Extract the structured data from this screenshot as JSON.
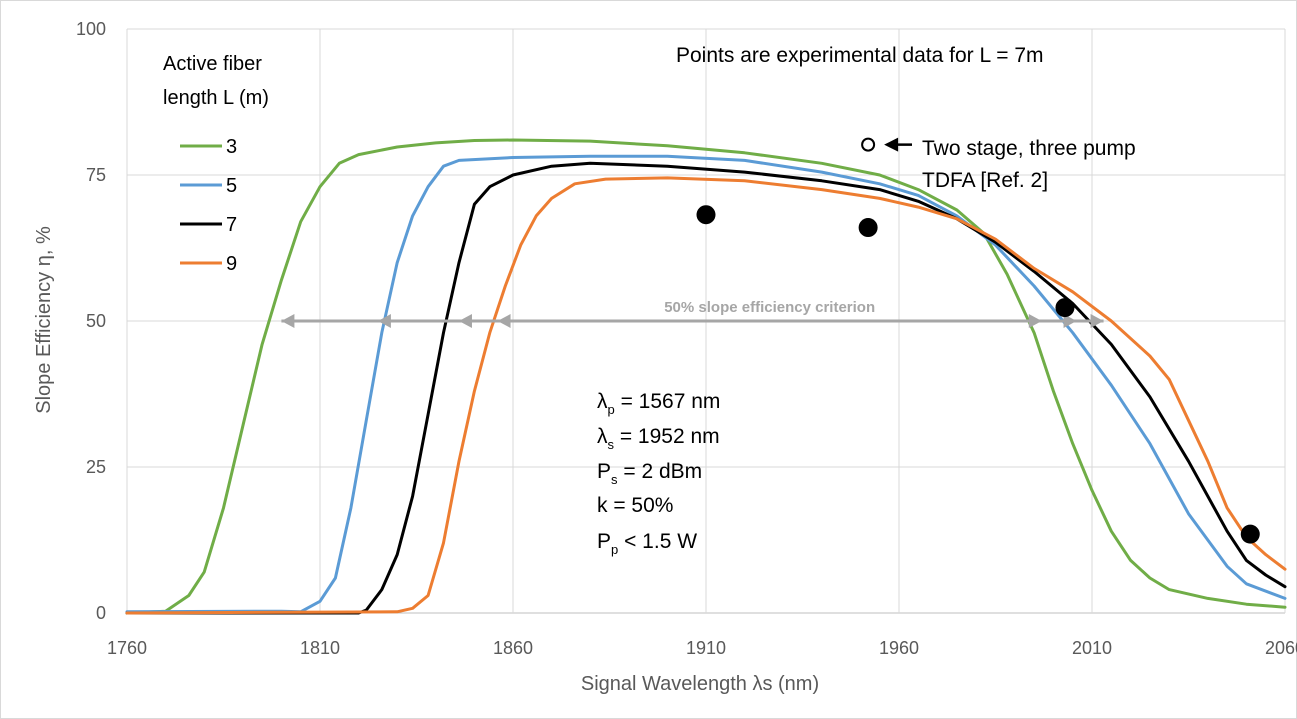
{
  "chart_data": {
    "type": "line",
    "xlabel": "Signal Wavelength λs (nm)",
    "ylabel": "Slope Efficiency η, %",
    "xlim": [
      1760,
      2060
    ],
    "ylim": [
      0,
      100
    ],
    "x_ticks": [
      1760,
      1810,
      1860,
      1910,
      1960,
      2010,
      2060
    ],
    "y_ticks": [
      0,
      25,
      50,
      75,
      100
    ],
    "grid": true,
    "legend": {
      "title_line1": "Active fiber",
      "title_line2": "length L (m)",
      "placement": "top-left"
    },
    "series": [
      {
        "name": "3",
        "color": "#70ad47",
        "points": [
          [
            1760,
            0
          ],
          [
            1770,
            0.3
          ],
          [
            1776,
            3
          ],
          [
            1780,
            7
          ],
          [
            1785,
            18
          ],
          [
            1790,
            32
          ],
          [
            1795,
            46
          ],
          [
            1800,
            57
          ],
          [
            1805,
            67
          ],
          [
            1810,
            73
          ],
          [
            1815,
            77
          ],
          [
            1820,
            78.5
          ],
          [
            1830,
            79.8
          ],
          [
            1840,
            80.5
          ],
          [
            1850,
            80.9
          ],
          [
            1860,
            81
          ],
          [
            1880,
            80.8
          ],
          [
            1900,
            80
          ],
          [
            1920,
            78.8
          ],
          [
            1940,
            77
          ],
          [
            1955,
            75
          ],
          [
            1965,
            72.5
          ],
          [
            1975,
            69
          ],
          [
            1982,
            65
          ],
          [
            1988,
            58
          ],
          [
            1995,
            48
          ],
          [
            2000,
            38
          ],
          [
            2005,
            29
          ],
          [
            2010,
            21
          ],
          [
            2015,
            14
          ],
          [
            2020,
            9
          ],
          [
            2025,
            6
          ],
          [
            2030,
            4
          ],
          [
            2040,
            2.5
          ],
          [
            2050,
            1.5
          ],
          [
            2060,
            1
          ]
        ]
      },
      {
        "name": "5",
        "color": "#5b9bd5",
        "points": [
          [
            1760,
            0.2
          ],
          [
            1800,
            0.3
          ],
          [
            1805,
            0.2
          ],
          [
            1810,
            2
          ],
          [
            1814,
            6
          ],
          [
            1818,
            18
          ],
          [
            1822,
            33
          ],
          [
            1826,
            48
          ],
          [
            1830,
            60
          ],
          [
            1834,
            68
          ],
          [
            1838,
            73
          ],
          [
            1842,
            76.5
          ],
          [
            1846,
            77.5
          ],
          [
            1860,
            78
          ],
          [
            1880,
            78.2
          ],
          [
            1900,
            78.2
          ],
          [
            1920,
            77.5
          ],
          [
            1940,
            75.5
          ],
          [
            1955,
            73.5
          ],
          [
            1965,
            71.5
          ],
          [
            1975,
            68
          ],
          [
            1985,
            63
          ],
          [
            1995,
            56
          ],
          [
            2005,
            48
          ],
          [
            2015,
            39
          ],
          [
            2025,
            29
          ],
          [
            2035,
            17
          ],
          [
            2045,
            8
          ],
          [
            2050,
            5
          ],
          [
            2060,
            2.5
          ]
        ]
      },
      {
        "name": "7",
        "color": "#000000",
        "points": [
          [
            1760,
            0
          ],
          [
            1820,
            0
          ],
          [
            1822,
            0.5
          ],
          [
            1826,
            4
          ],
          [
            1830,
            10
          ],
          [
            1834,
            20
          ],
          [
            1838,
            34
          ],
          [
            1842,
            48
          ],
          [
            1846,
            60
          ],
          [
            1850,
            70
          ],
          [
            1854,
            73
          ],
          [
            1860,
            75
          ],
          [
            1870,
            76.5
          ],
          [
            1880,
            77
          ],
          [
            1900,
            76.5
          ],
          [
            1920,
            75.5
          ],
          [
            1940,
            74
          ],
          [
            1955,
            72.5
          ],
          [
            1965,
            70.5
          ],
          [
            1975,
            67.5
          ],
          [
            1985,
            63.5
          ],
          [
            1995,
            58.5
          ],
          [
            2005,
            53
          ],
          [
            2015,
            46
          ],
          [
            2025,
            37
          ],
          [
            2035,
            26
          ],
          [
            2045,
            14
          ],
          [
            2050,
            9
          ],
          [
            2055,
            6.5
          ],
          [
            2060,
            4.5
          ]
        ]
      },
      {
        "name": "9",
        "color": "#ed7d31",
        "points": [
          [
            1760,
            0
          ],
          [
            1830,
            0.2
          ],
          [
            1834,
            0.8
          ],
          [
            1838,
            3
          ],
          [
            1842,
            12
          ],
          [
            1846,
            26
          ],
          [
            1850,
            38
          ],
          [
            1854,
            48
          ],
          [
            1858,
            56
          ],
          [
            1862,
            63
          ],
          [
            1866,
            68
          ],
          [
            1870,
            71
          ],
          [
            1876,
            73.5
          ],
          [
            1884,
            74.3
          ],
          [
            1900,
            74.5
          ],
          [
            1920,
            74
          ],
          [
            1940,
            72.5
          ],
          [
            1955,
            71
          ],
          [
            1965,
            69.5
          ],
          [
            1975,
            67.5
          ],
          [
            1985,
            64
          ],
          [
            1995,
            59
          ],
          [
            2005,
            55
          ],
          [
            2015,
            50
          ],
          [
            2025,
            44
          ],
          [
            2030,
            40
          ],
          [
            2035,
            33
          ],
          [
            2040,
            26
          ],
          [
            2045,
            18
          ],
          [
            2050,
            13
          ],
          [
            2055,
            10
          ],
          [
            2060,
            7.5
          ]
        ]
      }
    ],
    "experimental_points": {
      "label": "Points are experimental data for L = 7m",
      "points": [
        [
          1910,
          68.2
        ],
        [
          1952,
          66
        ],
        [
          2003,
          52.3
        ],
        [
          2051,
          13.5
        ]
      ]
    },
    "reference_point": {
      "x": 1952,
      "y": 80.2,
      "label_line1": "Two stage, three pump",
      "label_line2": "TDFA [Ref. 2]"
    },
    "criterion": {
      "label": "50% slope efficiency criterion",
      "y": 50,
      "x_from": 1800,
      "x_to": 2013,
      "arrow_tips": [
        1800,
        1825,
        1846,
        1856,
        1997,
        2006,
        2013
      ]
    },
    "parameters": {
      "lambda_p": {
        "symbol": "λ",
        "sub": "p",
        "value": " = 1567 nm"
      },
      "lambda_s": {
        "symbol": "λ",
        "sub": "s",
        "value": " = 1952 nm"
      },
      "P_s": {
        "symbol": "P",
        "sub": "s",
        "value": " = 2 dBm"
      },
      "k": {
        "text": "k = 50%"
      },
      "P_p": {
        "symbol": "P",
        "sub": "p",
        "value": " < 1.5 W"
      }
    }
  }
}
